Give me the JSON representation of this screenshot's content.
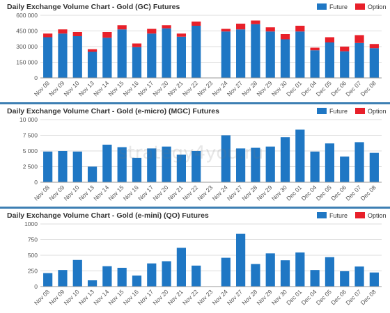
{
  "colors": {
    "future": "#1f77c4",
    "option": "#e8202a",
    "divider": "#3d7fb3",
    "grid": "#dddddd"
  },
  "watermark": "strategy4you.ru",
  "legend": {
    "future": "Future",
    "option": "Option"
  },
  "chart_data": [
    {
      "type": "bar",
      "title": "Daily Exchange Volume Chart - Gold (GC) Futures",
      "categories": [
        "Nov 08",
        "Nov 09",
        "Nov 10",
        "Nov 13",
        "Nov 14",
        "Nov 15",
        "Nov 16",
        "Nov 17",
        "Nov 20",
        "Nov 21",
        "Nov 22",
        "Nov 23",
        "Nov 24",
        "Nov 27",
        "Nov 28",
        "Nov 29",
        "Nov 30",
        "Dec 01",
        "Dec 04",
        "Dec 05",
        "Dec 06",
        "Dec 07",
        "Dec 08"
      ],
      "series": [
        {
          "name": "Future",
          "values": [
            390000,
            425000,
            400000,
            250000,
            385000,
            465000,
            295000,
            425000,
            475000,
            395000,
            500000,
            0,
            445000,
            465000,
            515000,
            445000,
            370000,
            445000,
            265000,
            340000,
            255000,
            335000,
            285000
          ]
        },
        {
          "name": "Option",
          "values": [
            35000,
            40000,
            40000,
            25000,
            55000,
            40000,
            35000,
            45000,
            30000,
            30000,
            40000,
            0,
            25000,
            55000,
            35000,
            40000,
            50000,
            55000,
            25000,
            50000,
            45000,
            75000,
            40000
          ]
        }
      ],
      "stacked": true,
      "ylim": [
        0,
        600000
      ],
      "yticks": [
        0,
        150000,
        300000,
        450000,
        600000
      ],
      "ytick_labels": [
        "0",
        "150 000",
        "300 000",
        "450 000",
        "600 000"
      ],
      "grid": true,
      "legend_position": "top-right"
    },
    {
      "type": "bar",
      "title": "Daily Exchange Volume Chart - Gold (e-micro) (MGC) Futures",
      "categories": [
        "Nov 08",
        "Nov 09",
        "Nov 10",
        "Nov 13",
        "Nov 14",
        "Nov 15",
        "Nov 16",
        "Nov 17",
        "Nov 20",
        "Nov 21",
        "Nov 22",
        "Nov 23",
        "Nov 24",
        "Nov 27",
        "Nov 28",
        "Nov 29",
        "Nov 30",
        "Dec 01",
        "Dec 04",
        "Dec 05",
        "Dec 06",
        "Dec 07",
        "Dec 08"
      ],
      "series": [
        {
          "name": "Future",
          "values": [
            4900,
            5000,
            4900,
            2500,
            6000,
            5600,
            3900,
            5400,
            5700,
            4400,
            5000,
            0,
            7500,
            5400,
            5500,
            5700,
            7200,
            8400,
            4900,
            6200,
            4100,
            6400,
            4700
          ]
        },
        {
          "name": "Option",
          "values": [
            0,
            0,
            0,
            0,
            0,
            0,
            0,
            0,
            0,
            0,
            0,
            0,
            0,
            0,
            0,
            0,
            0,
            0,
            0,
            0,
            0,
            0,
            0
          ]
        }
      ],
      "stacked": true,
      "ylim": [
        0,
        10000
      ],
      "yticks": [
        0,
        2500,
        5000,
        7500,
        10000
      ],
      "ytick_labels": [
        "0",
        "2 500",
        "5 000",
        "7 500",
        "10 000"
      ],
      "grid": true,
      "legend_position": "top-right"
    },
    {
      "type": "bar",
      "title": "Daily Exchange Volume Chart - Gold (e-mini) (QO) Futures",
      "categories": [
        "Nov 08",
        "Nov 09",
        "Nov 10",
        "Nov 13",
        "Nov 14",
        "Nov 15",
        "Nov 16",
        "Nov 17",
        "Nov 20",
        "Nov 21",
        "Nov 22",
        "Nov 23",
        "Nov 24",
        "Nov 27",
        "Nov 28",
        "Nov 29",
        "Nov 30",
        "Dec 01",
        "Dec 04",
        "Dec 05",
        "Dec 06",
        "Dec 07",
        "Dec 08"
      ],
      "series": [
        {
          "name": "Future",
          "values": [
            215,
            265,
            425,
            100,
            325,
            300,
            175,
            370,
            405,
            620,
            335,
            0,
            460,
            845,
            360,
            530,
            420,
            545,
            265,
            470,
            245,
            320,
            225
          ]
        },
        {
          "name": "Option",
          "values": [
            0,
            0,
            0,
            0,
            0,
            0,
            0,
            0,
            0,
            0,
            0,
            0,
            0,
            0,
            0,
            0,
            0,
            0,
            0,
            0,
            0,
            0,
            0
          ]
        }
      ],
      "stacked": true,
      "ylim": [
        0,
        1000
      ],
      "yticks": [
        0,
        250,
        500,
        750,
        1000
      ],
      "ytick_labels": [
        "0",
        "250",
        "500",
        "750",
        "1000"
      ],
      "grid": true,
      "legend_position": "top-right"
    }
  ]
}
